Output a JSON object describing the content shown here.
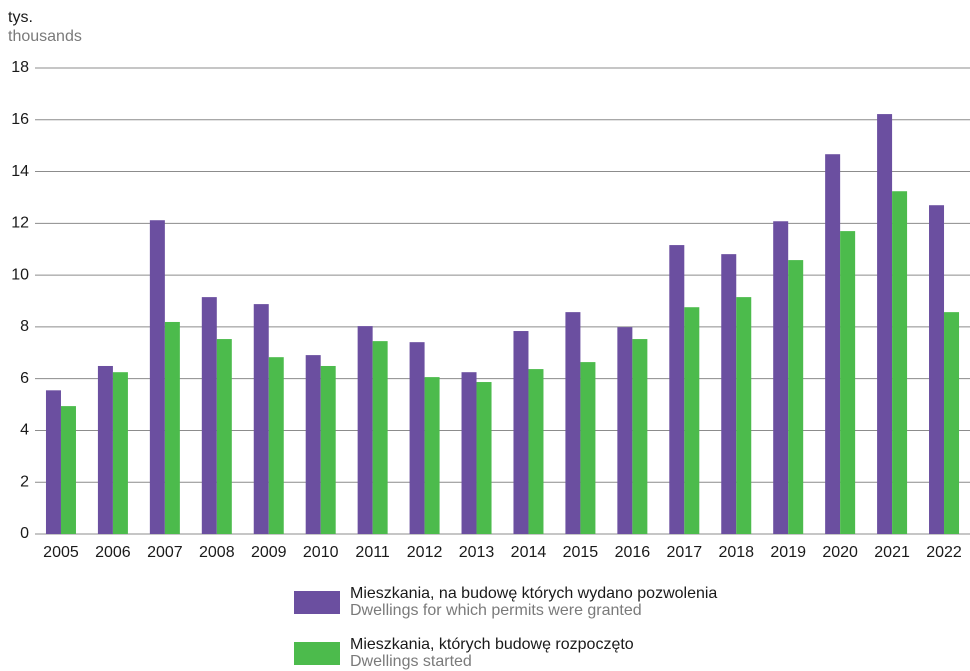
{
  "chart_data": {
    "type": "bar",
    "y_label": "tys.",
    "y_label_en": "thousands",
    "categories": [
      "2005",
      "2006",
      "2007",
      "2008",
      "2009",
      "2010",
      "2011",
      "2012",
      "2013",
      "2014",
      "2015",
      "2016",
      "2017",
      "2018",
      "2019",
      "2020",
      "2021",
      "2022"
    ],
    "series": [
      {
        "name": "Mieszkania, na budowę których wydano pozwolenia",
        "name_en": "Dwellings for which permits were granted",
        "color": "#6b4fa0",
        "values": [
          5.55,
          6.49,
          12.12,
          9.15,
          8.88,
          6.91,
          8.03,
          7.41,
          6.25,
          7.84,
          8.57,
          7.99,
          11.16,
          10.81,
          12.08,
          14.67,
          16.22,
          12.7
        ]
      },
      {
        "name": "Mieszkania, których budowę rozpoczęto",
        "name_en": "Dwellings started",
        "color": "#4cbb4c",
        "values": [
          4.94,
          6.25,
          8.19,
          7.53,
          6.83,
          6.49,
          7.45,
          6.06,
          5.87,
          6.37,
          6.64,
          7.53,
          8.76,
          9.15,
          10.58,
          11.7,
          13.24,
          8.57
        ]
      }
    ],
    "ylim": [
      0,
      18
    ],
    "yticks": [
      0,
      2,
      4,
      6,
      8,
      10,
      12,
      14,
      16,
      18
    ],
    "grid": true
  }
}
